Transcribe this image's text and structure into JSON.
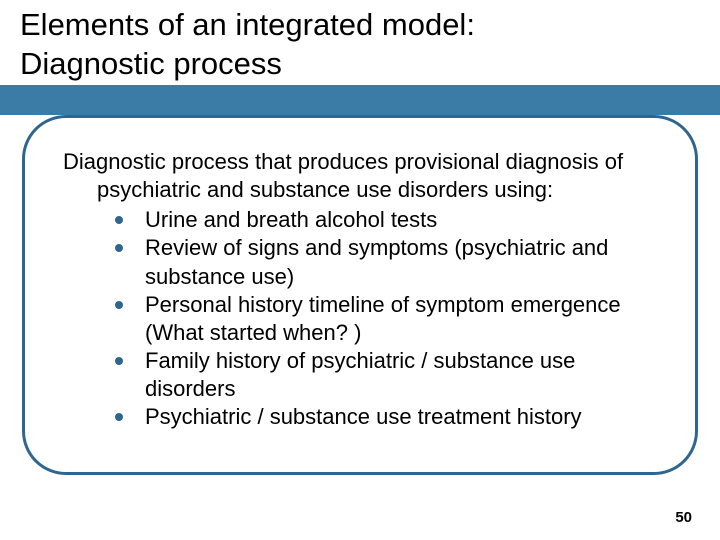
{
  "slide": {
    "title_line1": "Elements of an integrated model:",
    "title_line2": "Diagnostic process",
    "intro_line1": "Diagnostic process that produces provisional diagnosis of",
    "intro_line2": "psychiatric and substance use disorders using:",
    "bullets": [
      "Urine and breath alcohol tests",
      "Review of signs and symptoms (psychiatric and substance use)",
      "Personal history timeline of symptom emergence (What started when? )",
      "Family history of psychiatric / substance use disorders",
      "Psychiatric / substance use treatment history"
    ],
    "page_number": "50"
  },
  "style": {
    "accent_color": "#3a7ca5",
    "border_color": "#2f6690",
    "background_color": "#ffffff",
    "text_color": "#000000",
    "title_fontsize": 31,
    "body_fontsize": 22,
    "pagenum_fontsize": 15,
    "border_radius": 44,
    "border_width": 3,
    "bullet_diameter": 8
  }
}
